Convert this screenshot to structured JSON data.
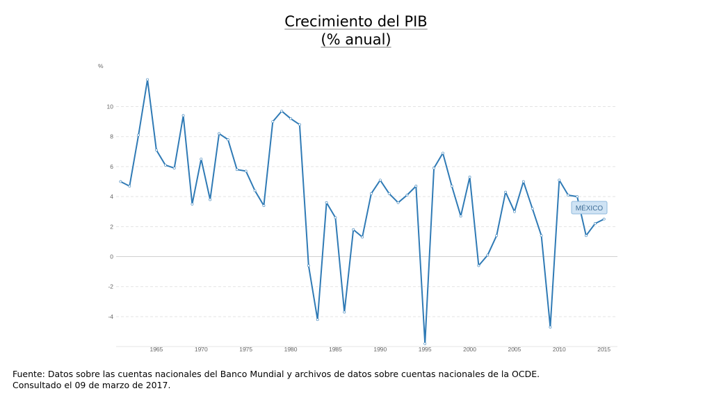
{
  "chart_data": {
    "type": "line",
    "title": "Crecimiento del PIB",
    "subtitle": "(% anual)",
    "ylabel": "%",
    "xlabel": "",
    "ylim": [
      -5.9,
      12.8
    ],
    "xlim": [
      1960.5,
      2016.5
    ],
    "y_ticks": [
      10,
      8,
      6,
      4,
      2,
      0,
      -2,
      -4
    ],
    "y_tick_labels": [
      "10",
      "8",
      "6",
      "4",
      "2",
      "0",
      "-2",
      "-4"
    ],
    "x_ticks": [
      1965,
      1970,
      1975,
      1980,
      1985,
      1990,
      1995,
      2000,
      2005,
      2010,
      2015
    ],
    "x_tick_labels": [
      "1965",
      "1970",
      "1975",
      "1980",
      "1985",
      "1990",
      "1995",
      "2000",
      "2005",
      "2010",
      "2015"
    ],
    "grid": "horizontal dashed",
    "series": [
      {
        "name": "MÉXICO",
        "color": "#2f7ab5",
        "x": [
          1961,
          1962,
          1963,
          1964,
          1965,
          1966,
          1967,
          1968,
          1969,
          1970,
          1971,
          1972,
          1973,
          1974,
          1975,
          1976,
          1977,
          1978,
          1979,
          1980,
          1981,
          1982,
          1983,
          1984,
          1985,
          1986,
          1987,
          1988,
          1989,
          1990,
          1991,
          1992,
          1993,
          1994,
          1995,
          1996,
          1997,
          1998,
          1999,
          2000,
          2001,
          2002,
          2003,
          2004,
          2005,
          2006,
          2007,
          2008,
          2009,
          2010,
          2011,
          2012,
          2013,
          2014,
          2015
        ],
        "values": [
          5.0,
          4.7,
          8.1,
          11.8,
          7.1,
          6.1,
          5.9,
          9.4,
          3.5,
          6.5,
          3.8,
          8.2,
          7.8,
          5.8,
          5.7,
          4.4,
          3.4,
          9.0,
          9.7,
          9.2,
          8.8,
          -0.6,
          -4.2,
          3.6,
          2.6,
          -3.7,
          1.8,
          1.3,
          4.2,
          5.1,
          4.2,
          3.6,
          4.1,
          4.7,
          -5.8,
          5.9,
          6.9,
          4.7,
          2.7,
          5.3,
          -0.6,
          0.1,
          1.4,
          4.3,
          3.0,
          5.0,
          3.2,
          1.4,
          -4.7,
          5.1,
          4.1,
          4.0,
          1.4,
          2.2,
          2.5
        ]
      }
    ],
    "series_label_box": "MÉXICO"
  },
  "footer": {
    "source_line1": "Fuente: Datos sobre las cuentas nacionales del Banco Mundial y archivos de datos sobre cuentas nacionales de la OCDE.",
    "source_line2": "Consultado el 09 de marzo de 2017."
  }
}
